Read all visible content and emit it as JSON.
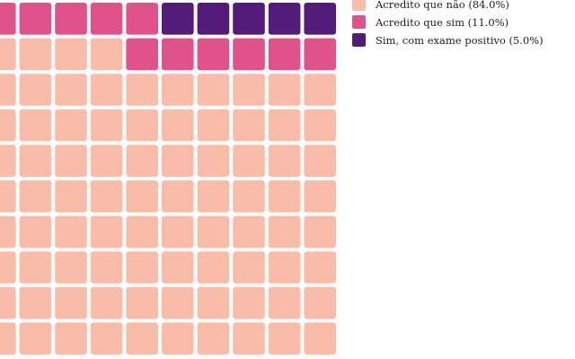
{
  "chart_data": {
    "type": "waffle",
    "total_squares": 100,
    "columns": 10,
    "rows": 10,
    "fill_order": "bottom-left, row by row upward",
    "series": [
      {
        "name": "Acredito que não",
        "value": 84,
        "percent_label": "(84.0%)",
        "color": "#f8bca8"
      },
      {
        "name": "Acredito que sim",
        "value": 11,
        "percent_label": "(11.0%)",
        "color": "#e0528a"
      },
      {
        "name": "Sim, com exame positivo",
        "value": 5,
        "percent_label": "(5.0%)",
        "color": "#521c78"
      }
    ],
    "legend": {
      "position": "top-right",
      "items": [
        "Acredito que não (84.0%)",
        "Acredito que sim (11.0%)",
        "Sim, com exame positivo (5.0%)"
      ]
    }
  }
}
